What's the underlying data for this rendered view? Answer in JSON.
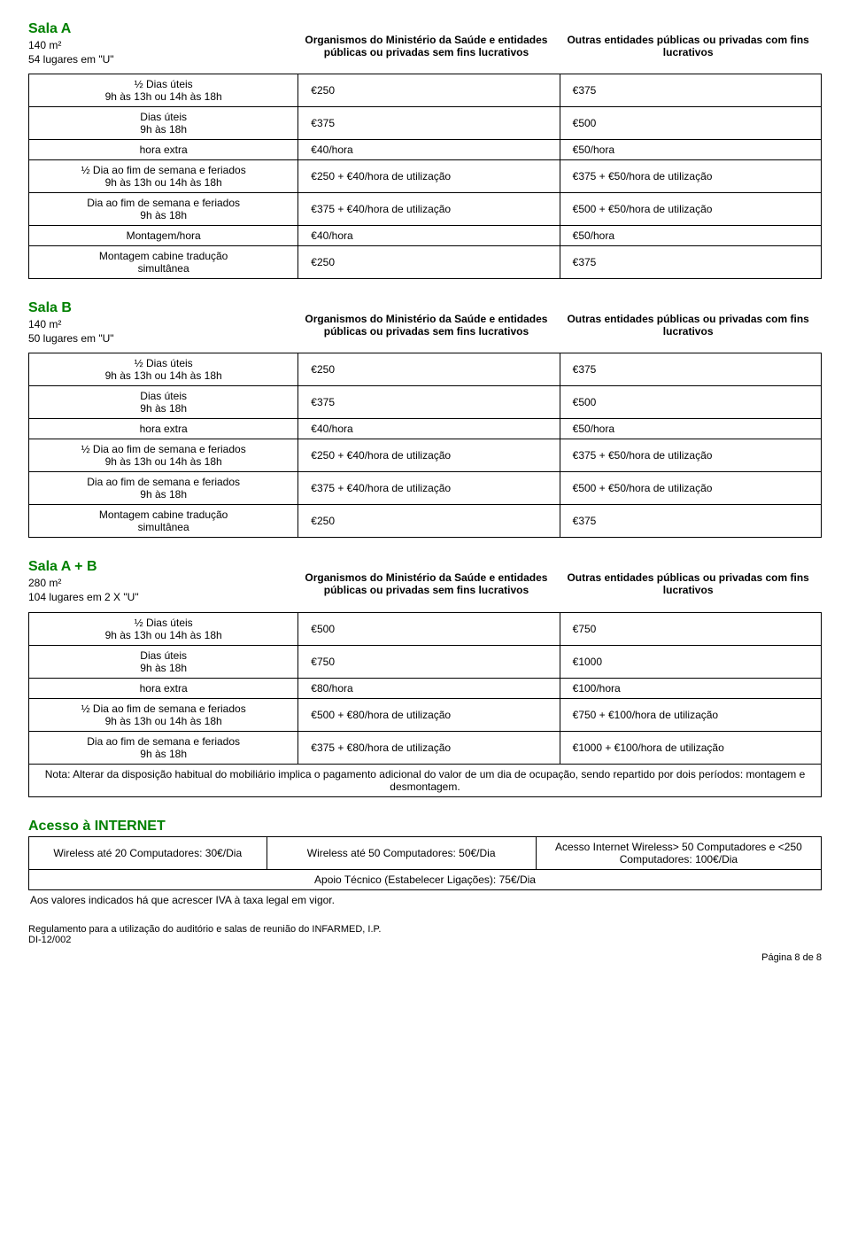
{
  "salaA": {
    "title": "Sala A",
    "area": "140 m²",
    "capacity": "54 lugares em \"U\"",
    "colA": "Organismos do Ministério da Saúde e entidades públicas ou privadas sem fins lucrativos",
    "colB": "Outras entidades públicas ou privadas com fins lucrativos",
    "rows": [
      {
        "label": "½ Dias úteis\n9h às 13h ou 14h às 18h",
        "a": "€250",
        "b": "€375"
      },
      {
        "label": "Dias úteis\n9h às 18h",
        "a": "€375",
        "b": "€500"
      },
      {
        "label": "hora extra",
        "a": "€40/hora",
        "b": "€50/hora"
      },
      {
        "label": "½ Dia ao fim de semana e feriados\n9h às 13h ou 14h às 18h",
        "a": "€250 + €40/hora de utilização",
        "b": "€375 + €50/hora de utilização"
      },
      {
        "label": "Dia ao fim de semana e feriados\n9h às 18h",
        "a": "€375 + €40/hora de utilização",
        "b": "€500 + €50/hora de utilização"
      },
      {
        "label": "Montagem/hora",
        "a": "€40/hora",
        "b": "€50/hora"
      },
      {
        "label": "Montagem cabine tradução\nsimultânea",
        "a": "€250",
        "b": "€375"
      }
    ]
  },
  "salaB": {
    "title": "Sala B",
    "area": "140 m²",
    "capacity": "50 lugares em \"U\"",
    "colA": "Organismos do Ministério da Saúde e entidades públicas ou privadas sem fins lucrativos",
    "colB": "Outras entidades públicas ou privadas com fins lucrativos",
    "rows": [
      {
        "label": "½ Dias úteis\n9h às 13h ou 14h às 18h",
        "a": "€250",
        "b": "€375"
      },
      {
        "label": "Dias úteis\n9h às 18h",
        "a": "€375",
        "b": "€500"
      },
      {
        "label": "hora extra",
        "a": "€40/hora",
        "b": "€50/hora"
      },
      {
        "label": "½ Dia ao fim de semana e feriados\n9h às 13h ou 14h às 18h",
        "a": "€250 + €40/hora de utilização",
        "b": "€375 + €50/hora de utilização"
      },
      {
        "label": "Dia ao fim de semana e feriados\n9h às 18h",
        "a": "€375 + €40/hora de utilização",
        "b": "€500 + €50/hora de utilização"
      },
      {
        "label": "Montagem cabine tradução\nsimultânea",
        "a": "€250",
        "b": "€375"
      }
    ]
  },
  "salaAB": {
    "title": "Sala A + B",
    "area": "280 m²",
    "capacity": "104 lugares em 2 X \"U\"",
    "colA": "Organismos do Ministério da Saúde e entidades públicas ou privadas sem fins lucrativos",
    "colB": "Outras entidades públicas ou privadas com fins lucrativos",
    "rows": [
      {
        "label": "½ Dias úteis\n9h às 13h ou 14h às 18h",
        "a": "€500",
        "b": "€750"
      },
      {
        "label": "Dias úteis\n9h às 18h",
        "a": "€750",
        "b": "€1000"
      },
      {
        "label": "hora extra",
        "a": "€80/hora",
        "b": "€100/hora"
      },
      {
        "label": "½ Dia ao fim de semana e feriados\n9h às 13h ou 14h às 18h",
        "a": "€500 + €80/hora de utilização",
        "b": "€750 + €100/hora de utilização"
      },
      {
        "label": "Dia ao fim de semana e feriados\n9h às 18h",
        "a": "€375 + €80/hora de utilização",
        "b": "€1000 + €100/hora de utilização"
      }
    ],
    "note": "Nota: Alterar da disposição habitual do mobiliário implica o pagamento adicional do valor de um dia de ocupação, sendo repartido por dois períodos: montagem e desmontagem."
  },
  "internet": {
    "title": "Acesso à INTERNET",
    "cells": [
      "Wireless até 20 Computadores: 30€/Dia",
      "Wireless até 50 Computadores: 50€/Dia",
      "Acesso Internet Wireless> 50 Computadores e <250 Computadores: 100€/Dia"
    ],
    "support": "Apoio Técnico (Estabelecer Ligações): 75€/Dia",
    "footnote": "Aos valores indicados há que acrescer IVA à taxa legal em vigor."
  },
  "footer": {
    "line1": "Regulamento para a utilização do auditório e salas de reunião do INFARMED, I.P.",
    "line2": "DI-12/002",
    "page": "Página 8 de 8"
  }
}
